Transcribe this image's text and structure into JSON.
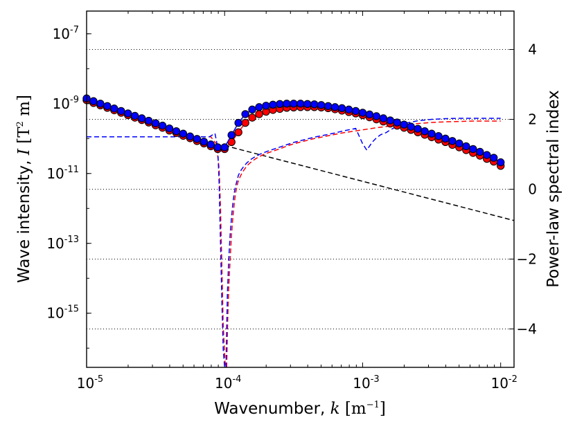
{
  "chart_data": {
    "type": "line",
    "title": "",
    "xscale": "log",
    "xlim": [
      1e-05,
      0.0125
    ],
    "x_ticks": [
      {
        "base": "10",
        "exp": "-5",
        "value": 1e-05
      },
      {
        "base": "10",
        "exp": "-4",
        "value": 0.0001
      },
      {
        "base": "10",
        "exp": "-3",
        "value": 0.001
      },
      {
        "base": "10",
        "exp": "-2",
        "value": 0.01
      }
    ],
    "xlabel": {
      "text": "Wavenumber, ",
      "var": "k",
      "unit_open": " [m",
      "unit_exp": "−1",
      "unit_close": "]"
    },
    "y_left": {
      "scale": "log",
      "exp_min": -16.55,
      "exp_max": -6.35,
      "ticks": [
        {
          "base": "10",
          "exp": "-7",
          "value": 1e-07
        },
        {
          "base": "10",
          "exp": "-9",
          "value": 1e-09
        },
        {
          "base": "10",
          "exp": "-11",
          "value": 1e-11
        },
        {
          "base": "10",
          "exp": "-13",
          "value": 1e-13
        },
        {
          "base": "10",
          "exp": "-15",
          "value": 1e-15
        }
      ],
      "label": {
        "text": "Wave intensity, ",
        "var": "I",
        "unit_open": " [T",
        "unit_exp": "2",
        "unit_close": " m]"
      }
    },
    "y_right": {
      "scale": "linear",
      "min": -5.1,
      "max": 5.1,
      "ticks": [
        {
          "label": "4",
          "value": 4
        },
        {
          "label": "2",
          "value": 2
        },
        {
          "label": "0",
          "value": 0
        },
        {
          "label": "−2",
          "value": -2
        },
        {
          "label": "−4",
          "value": -4
        }
      ],
      "label": "Power-law spectral index"
    },
    "gridlines_right_axis": [
      4,
      2,
      0,
      -2,
      -4
    ],
    "series": [
      {
        "name": "red markers",
        "axis": "left",
        "style": "markers",
        "color": "#ff0000",
        "log10_x": [
          -5.0,
          -4.95,
          -4.9,
          -4.85,
          -4.8,
          -4.75,
          -4.7,
          -4.65,
          -4.6,
          -4.55,
          -4.5,
          -4.45,
          -4.4,
          -4.35,
          -4.3,
          -4.25,
          -4.2,
          -4.15,
          -4.1,
          -4.05,
          -4.0,
          -3.95,
          -3.9,
          -3.85,
          -3.8,
          -3.75,
          -3.7,
          -3.65,
          -3.6,
          -3.55,
          -3.5,
          -3.45,
          -3.4,
          -3.35,
          -3.3,
          -3.25,
          -3.2,
          -3.15,
          -3.1,
          -3.05,
          -3.0,
          -2.95,
          -2.9,
          -2.85,
          -2.8,
          -2.75,
          -2.7,
          -2.65,
          -2.6,
          -2.55,
          -2.5,
          -2.45,
          -2.4,
          -2.35,
          -2.3,
          -2.25,
          -2.2,
          -2.15,
          -2.1,
          -2.05,
          -2.0
        ],
        "log10_y": [
          -8.9,
          -8.98,
          -9.05,
          -9.12,
          -9.19,
          -9.26,
          -9.33,
          -9.4,
          -9.47,
          -9.54,
          -9.62,
          -9.69,
          -9.77,
          -9.84,
          -9.92,
          -9.99,
          -10.07,
          -10.14,
          -10.22,
          -10.3,
          -10.3,
          -10.1,
          -9.82,
          -9.55,
          -9.4,
          -9.3,
          -9.23,
          -9.18,
          -9.15,
          -9.12,
          -9.11,
          -9.1,
          -9.1,
          -9.1,
          -9.11,
          -9.13,
          -9.16,
          -9.2,
          -9.24,
          -9.28,
          -9.33,
          -9.39,
          -9.45,
          -9.51,
          -9.57,
          -9.63,
          -9.69,
          -9.75,
          -9.82,
          -9.89,
          -9.96,
          -10.03,
          -10.1,
          -10.18,
          -10.25,
          -10.33,
          -10.41,
          -10.49,
          -10.58,
          -10.66,
          -10.78
        ]
      },
      {
        "name": "blue markers",
        "axis": "left",
        "style": "markers",
        "color": "#0000ff",
        "log10_x": [
          -5.0,
          -4.95,
          -4.9,
          -4.85,
          -4.8,
          -4.75,
          -4.7,
          -4.65,
          -4.6,
          -4.55,
          -4.5,
          -4.45,
          -4.4,
          -4.35,
          -4.3,
          -4.25,
          -4.2,
          -4.15,
          -4.1,
          -4.05,
          -4.0,
          -3.95,
          -3.9,
          -3.85,
          -3.8,
          -3.75,
          -3.7,
          -3.65,
          -3.6,
          -3.55,
          -3.5,
          -3.45,
          -3.4,
          -3.35,
          -3.3,
          -3.25,
          -3.2,
          -3.15,
          -3.1,
          -3.05,
          -3.0,
          -2.95,
          -2.9,
          -2.85,
          -2.8,
          -2.75,
          -2.7,
          -2.65,
          -2.6,
          -2.55,
          -2.5,
          -2.45,
          -2.4,
          -2.35,
          -2.3,
          -2.25,
          -2.2,
          -2.15,
          -2.1,
          -2.05,
          -2.0
        ],
        "log10_y": [
          -8.85,
          -8.93,
          -9.0,
          -9.07,
          -9.14,
          -9.21,
          -9.28,
          -9.35,
          -9.42,
          -9.49,
          -9.56,
          -9.63,
          -9.71,
          -9.79,
          -9.86,
          -9.94,
          -10.01,
          -10.09,
          -10.17,
          -10.25,
          -10.25,
          -9.9,
          -9.55,
          -9.3,
          -9.17,
          -9.1,
          -9.06,
          -9.03,
          -9.01,
          -9.0,
          -9.0,
          -9.0,
          -9.01,
          -9.02,
          -9.04,
          -9.07,
          -9.1,
          -9.13,
          -9.17,
          -9.21,
          -9.26,
          -9.31,
          -9.36,
          -9.42,
          -9.48,
          -9.54,
          -9.6,
          -9.66,
          -9.72,
          -9.79,
          -9.86,
          -9.93,
          -10.0,
          -10.07,
          -10.14,
          -10.22,
          -10.3,
          -10.38,
          -10.47,
          -10.55,
          -10.68
        ]
      },
      {
        "name": "black dashed fit",
        "axis": "left",
        "style": "dashed",
        "color": "#000000",
        "log10_x": [
          -4.0,
          -1.9
        ],
        "log10_y": [
          -10.2,
          -12.35
        ]
      },
      {
        "name": "red dashed index",
        "axis": "right",
        "style": "dashed",
        "color": "#ff0000",
        "log10_x": [
          -5.0,
          -4.1,
          -4.06,
          -4.04,
          -4.03,
          -4.02,
          -4.01,
          -3.995,
          -3.99,
          -3.985,
          -3.978,
          -3.97,
          -3.96,
          -3.95,
          -3.94,
          -3.93,
          -3.92,
          -3.91,
          -3.9,
          -3.88,
          -3.86,
          -3.84,
          -3.82,
          -3.8,
          -3.78,
          -3.76,
          -3.74,
          -3.72,
          -3.7,
          -3.68,
          -3.65,
          -3.62,
          -3.59,
          -3.56,
          -3.53,
          -3.5,
          -3.47,
          -3.44,
          -3.41,
          -3.38,
          -3.35,
          -3.3,
          -3.25,
          -3.2,
          -3.15,
          -3.1,
          -3.05,
          -3.0,
          -2.9,
          -2.8,
          -2.7,
          -2.6,
          -2.5,
          -2.4,
          -2.3,
          -2.2,
          -2.1,
          -2.0
        ],
        "y": [
          1.5,
          1.5,
          1.3,
          0.6,
          -0.5,
          -2.2,
          -3.9,
          -5.1,
          null,
          -5.1,
          -3.8,
          -2.8,
          -2.0,
          -1.3,
          -0.8,
          -0.4,
          -0.1,
          0.1,
          0.25,
          0.42,
          0.55,
          0.66,
          0.74,
          0.8,
          0.86,
          0.91,
          0.95,
          0.99,
          1.02,
          1.05,
          1.09,
          1.13,
          1.17,
          1.22,
          1.26,
          1.3,
          1.33,
          1.36,
          1.39,
          1.42,
          1.45,
          1.49,
          1.53,
          1.57,
          1.61,
          1.64,
          1.67,
          1.7,
          1.76,
          1.81,
          1.85,
          1.88,
          1.91,
          1.93,
          1.94,
          1.95,
          1.95,
          1.95
        ]
      },
      {
        "name": "blue dashed index",
        "axis": "right",
        "style": "dashed",
        "color": "#0000ff",
        "log10_x": [
          -5.0,
          -4.11,
          -4.07,
          -4.05,
          -4.04,
          -4.03,
          -4.02,
          -4.01,
          -4.0,
          -3.995,
          -3.99,
          -3.985,
          -3.98,
          -3.97,
          -3.96,
          -3.95,
          -3.94,
          -3.93,
          -3.92,
          -3.91,
          -3.9,
          -3.88,
          -3.86,
          -3.84,
          -3.82,
          -3.8,
          -3.78,
          -3.76,
          -3.74,
          -3.72,
          -3.7,
          -3.68,
          -3.65,
          -3.62,
          -3.59,
          -3.56,
          -3.53,
          -3.5,
          -3.47,
          -3.44,
          -3.41,
          -3.38,
          -3.35,
          -3.3,
          -3.25,
          -3.2,
          -3.15,
          -3.1,
          -3.05,
          -3.0,
          -2.97,
          -2.93,
          -2.9,
          -2.87,
          -2.83,
          -2.8,
          -2.75,
          -2.7,
          -2.6,
          -2.5,
          -2.4,
          -2.3,
          -2.2,
          -2.1,
          -2.0
        ],
        "y": [
          1.5,
          1.5,
          1.6,
          1.2,
          0.2,
          -1.5,
          -3.2,
          -4.6,
          -5.1,
          null,
          -5.1,
          -4.0,
          -3.0,
          -2.0,
          -1.3,
          -0.8,
          -0.4,
          -0.1,
          0.1,
          0.25,
          0.4,
          0.55,
          0.66,
          0.75,
          0.82,
          0.88,
          0.93,
          0.97,
          1.01,
          1.04,
          1.07,
          1.1,
          1.14,
          1.18,
          1.22,
          1.26,
          1.3,
          1.34,
          1.37,
          1.4,
          1.43,
          1.46,
          1.49,
          1.53,
          1.57,
          1.61,
          1.66,
          1.7,
          1.74,
          1.3,
          1.12,
          1.35,
          1.47,
          1.56,
          1.62,
          1.7,
          1.8,
          1.88,
          1.96,
          2.0,
          2.02,
          2.03,
          2.03,
          2.03,
          2.03
        ]
      }
    ]
  }
}
